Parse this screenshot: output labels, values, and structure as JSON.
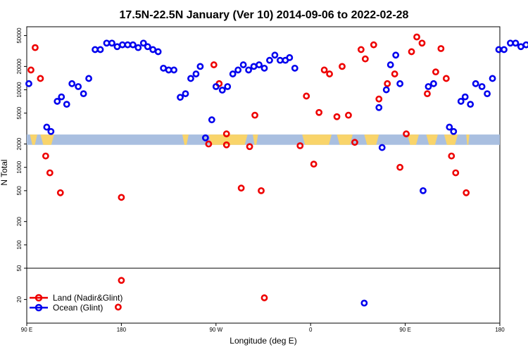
{
  "chart_data": {
    "type": "scatter",
    "title": "17.5N-22.5N January (Ver 10)   2014-09-06 to 2022-02-28",
    "xlabel": "Longitude (deg E)",
    "ylabel": "N Total",
    "x_ticks": [
      {
        "value": 90,
        "label": "90 E"
      },
      {
        "value": 180,
        "label": "180"
      },
      {
        "value": 270,
        "label": "90 W"
      },
      {
        "value": 360,
        "label": "0"
      },
      {
        "value": 450,
        "label": "90 E"
      },
      {
        "value": 540,
        "label": "180"
      }
    ],
    "xlim": [
      90,
      540
    ],
    "y_scale": "log",
    "y_ticks_upper": [
      {
        "value": 50,
        "label": "50"
      },
      {
        "value": 100,
        "label": "100"
      },
      {
        "value": 200,
        "label": "200"
      },
      {
        "value": 500,
        "label": "500"
      },
      {
        "value": 1000,
        "label": "1000"
      },
      {
        "value": 2000,
        "label": "2000"
      },
      {
        "value": 5000,
        "label": "5000"
      },
      {
        "value": 10000,
        "label": "10000"
      },
      {
        "value": 20000,
        "label": "20000"
      },
      {
        "value": 50000,
        "label": "50000"
      }
    ],
    "y_ticks_lower": [
      {
        "value": 20,
        "label": "20"
      }
    ],
    "ylim_upper": [
      50,
      65000
    ],
    "ylim_lower": [
      10,
      50
    ],
    "legend_position": "bottom-left",
    "series": [
      {
        "name": "Land (Nadir&Glint)",
        "color": "#ee0000",
        "points": [
          [
            94,
            18000
          ],
          [
            98,
            35000
          ],
          [
            103,
            14000
          ],
          [
            108,
            1400
          ],
          [
            112,
            850
          ],
          [
            122,
            470
          ],
          [
            177,
            16
          ],
          [
            180,
            410
          ],
          [
            180,
            35
          ],
          [
            263,
            2000
          ],
          [
            268,
            21000
          ],
          [
            273,
            12000
          ],
          [
            280,
            2700
          ],
          [
            280,
            1950
          ],
          [
            294,
            540
          ],
          [
            302,
            1850
          ],
          [
            307,
            4700
          ],
          [
            313,
            500
          ],
          [
            316,
            21
          ],
          [
            350,
            1900
          ],
          [
            356,
            8300
          ],
          [
            363,
            1100
          ],
          [
            368,
            5100
          ],
          [
            373,
            18000
          ],
          [
            378,
            16000
          ],
          [
            385,
            4500
          ],
          [
            390,
            20000
          ],
          [
            396,
            4700
          ],
          [
            402,
            2100
          ],
          [
            408,
            33000
          ],
          [
            412,
            25000
          ],
          [
            420,
            38000
          ],
          [
            425,
            7600
          ],
          [
            433,
            12000
          ],
          [
            440,
            16000
          ],
          [
            445,
            1000
          ],
          [
            451,
            2700
          ],
          [
            456,
            31000
          ],
          [
            461,
            48000
          ],
          [
            466,
            40000
          ],
          [
            471,
            8900
          ],
          [
            479,
            17000
          ],
          [
            484,
            34000
          ],
          [
            489,
            14000
          ],
          [
            494,
            1400
          ],
          [
            498,
            850
          ],
          [
            508,
            470
          ]
        ]
      },
      {
        "name": "Ocean (Glint)",
        "color": "#0000ee",
        "points": [
          [
            92,
            12000
          ],
          [
            109,
            3300
          ],
          [
            113,
            2900
          ],
          [
            119,
            7100
          ],
          [
            123,
            8100
          ],
          [
            128,
            6500
          ],
          [
            133,
            12000
          ],
          [
            139,
            11000
          ],
          [
            144,
            8900
          ],
          [
            149,
            14000
          ],
          [
            155,
            33000
          ],
          [
            160,
            33000
          ],
          [
            166,
            40000
          ],
          [
            171,
            40000
          ],
          [
            176,
            36000
          ],
          [
            181,
            38000
          ],
          [
            186,
            38000
          ],
          [
            191,
            38000
          ],
          [
            196,
            35000
          ],
          [
            201,
            40000
          ],
          [
            205,
            36000
          ],
          [
            210,
            33000
          ],
          [
            215,
            31000
          ],
          [
            220,
            19000
          ],
          [
            225,
            18000
          ],
          [
            230,
            18000
          ],
          [
            236,
            8000
          ],
          [
            241,
            8900
          ],
          [
            246,
            14000
          ],
          [
            251,
            16000
          ],
          [
            255,
            20000
          ],
          [
            260,
            2400
          ],
          [
            266,
            4100
          ],
          [
            270,
            11000
          ],
          [
            276,
            9900
          ],
          [
            281,
            11000
          ],
          [
            286,
            16000
          ],
          [
            291,
            18000
          ],
          [
            296,
            21000
          ],
          [
            301,
            18000
          ],
          [
            306,
            20000
          ],
          [
            311,
            21000
          ],
          [
            316,
            19000
          ],
          [
            321,
            24000
          ],
          [
            326,
            28000
          ],
          [
            331,
            24000
          ],
          [
            336,
            24000
          ],
          [
            340,
            26000
          ],
          [
            345,
            19000
          ],
          [
            411,
            18
          ],
          [
            425,
            5900
          ],
          [
            428,
            1800
          ],
          [
            432,
            10000
          ],
          [
            436,
            21000
          ],
          [
            441,
            28000
          ],
          [
            445,
            12000
          ],
          [
            467,
            500
          ],
          [
            472,
            11000
          ],
          [
            477,
            12000
          ],
          [
            492,
            3300
          ],
          [
            496,
            2900
          ],
          [
            503,
            7100
          ],
          [
            507,
            8100
          ],
          [
            512,
            6500
          ],
          [
            517,
            12000
          ],
          [
            523,
            11000
          ],
          [
            528,
            8900
          ],
          [
            533,
            14000
          ],
          [
            539,
            33000
          ],
          [
            544,
            33000
          ],
          [
            550,
            40000
          ],
          [
            555,
            40000
          ],
          [
            560,
            36000
          ],
          [
            565,
            38000
          ]
        ]
      }
    ]
  }
}
